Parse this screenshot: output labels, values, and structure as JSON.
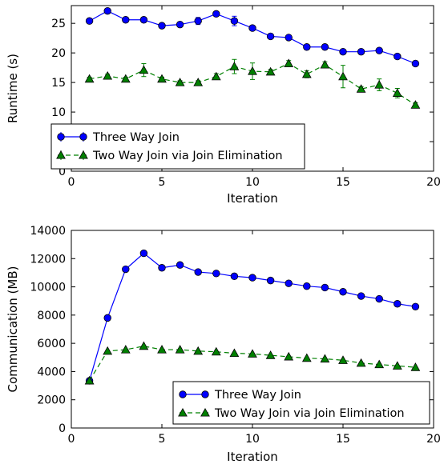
{
  "chart_data": [
    {
      "type": "line",
      "xlabel": "Iteration",
      "ylabel": "Runtime (s)",
      "xlim": [
        0,
        20
      ],
      "ylim": [
        0,
        28
      ],
      "xticks": [
        0,
        5,
        10,
        15,
        20
      ],
      "yticks": [
        0,
        5,
        10,
        15,
        20,
        25
      ],
      "legend_position": "lower-left",
      "x": [
        1,
        2,
        3,
        4,
        5,
        6,
        7,
        8,
        9,
        10,
        11,
        12,
        13,
        14,
        15,
        16,
        17,
        18,
        19
      ],
      "series": [
        {
          "name": "Three Way Join",
          "color": "#0000ff",
          "marker": "circle",
          "linestyle": "solid",
          "values": [
            25.4,
            27.1,
            25.6,
            25.6,
            24.6,
            24.8,
            25.4,
            26.6,
            25.4,
            24.2,
            22.8,
            22.6,
            21.0,
            21.0,
            20.2,
            20.2,
            20.4,
            19.4,
            18.2
          ],
          "errors": [
            0.3,
            0.2,
            0.2,
            0.2,
            0.2,
            0.2,
            0.6,
            0.3,
            0.8,
            0.2,
            0.2,
            0.2,
            0.2,
            0.2,
            0.2,
            0.2,
            0.2,
            0.2,
            0.2
          ]
        },
        {
          "name": "Two Way Join via Join Elimination",
          "color": "#008000",
          "marker": "triangle",
          "linestyle": "dashed",
          "values": [
            15.6,
            16.1,
            15.6,
            17.1,
            15.6,
            15.0,
            15.0,
            16.0,
            17.7,
            16.9,
            16.8,
            18.2,
            16.4,
            18.0,
            16.0,
            13.9,
            14.6,
            13.2,
            11.2
          ],
          "errors": [
            0.3,
            0.3,
            0.3,
            1.1,
            0.3,
            0.3,
            0.3,
            0.5,
            1.2,
            1.4,
            0.4,
            0.5,
            0.6,
            0.5,
            1.9,
            0.4,
            1.0,
            0.8,
            0.4
          ]
        }
      ]
    },
    {
      "type": "line",
      "xlabel": "Iteration",
      "ylabel": "Communication (MB)",
      "xlim": [
        0,
        20
      ],
      "ylim": [
        0,
        14000
      ],
      "xticks": [
        0,
        5,
        10,
        15,
        20
      ],
      "yticks": [
        0,
        2000,
        4000,
        6000,
        8000,
        10000,
        12000,
        14000
      ],
      "legend_position": "lower-right",
      "x": [
        1,
        2,
        3,
        4,
        5,
        6,
        7,
        8,
        9,
        10,
        11,
        12,
        13,
        14,
        15,
        16,
        17,
        18,
        19
      ],
      "series": [
        {
          "name": "Three Way Join",
          "color": "#0000ff",
          "marker": "circle",
          "linestyle": "solid",
          "values": [
            3350,
            7800,
            11250,
            12380,
            11350,
            11550,
            11050,
            10950,
            10750,
            10650,
            10450,
            10250,
            10050,
            9950,
            9650,
            9350,
            9150,
            8800,
            8600
          ]
        },
        {
          "name": "Two Way Join via Join Elimination",
          "color": "#008000",
          "marker": "triangle",
          "linestyle": "dashed",
          "values": [
            3350,
            5450,
            5550,
            5800,
            5550,
            5550,
            5450,
            5400,
            5300,
            5250,
            5150,
            5050,
            4950,
            4900,
            4800,
            4600,
            4500,
            4400,
            4300
          ]
        }
      ]
    }
  ]
}
